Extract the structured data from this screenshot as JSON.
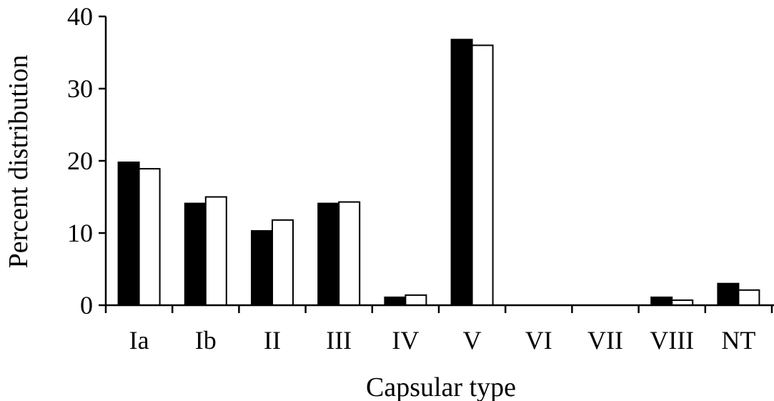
{
  "chart_data": {
    "type": "bar",
    "title": "",
    "xlabel": "Capsular type",
    "ylabel": "Percent distribution",
    "ylim": [
      0,
      40
    ],
    "yticks": [
      0,
      10,
      20,
      30,
      40
    ],
    "grid": false,
    "categories": [
      "Ia",
      "Ib",
      "II",
      "III",
      "IV",
      "V",
      "VI",
      "VII",
      "VIII",
      "NT"
    ],
    "series": [
      {
        "fill": "#000000",
        "values": [
          19.8,
          14.1,
          10.3,
          14.1,
          1.1,
          36.8,
          0,
          0,
          1.1,
          3.0
        ]
      },
      {
        "fill": "#ffffff",
        "values": [
          18.9,
          15.0,
          11.8,
          14.3,
          1.4,
          36.0,
          0,
          0,
          0.7,
          2.1
        ]
      }
    ]
  }
}
